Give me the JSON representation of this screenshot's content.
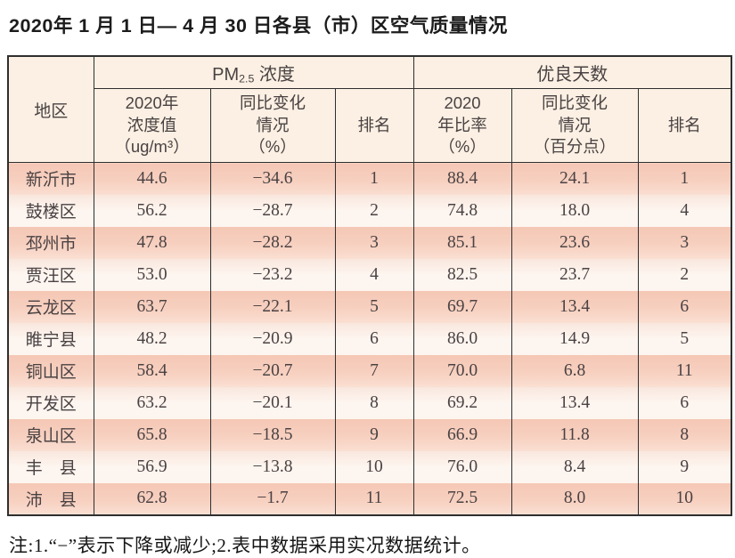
{
  "title": "2020年 1 月 1 日— 4 月 30 日各县（市）区空气质量情况",
  "table": {
    "header": {
      "region": "地区",
      "pm25": {
        "prefix": "PM",
        "sub": "2.5",
        "suffix": " 浓度"
      },
      "good_days": "优良天数",
      "pm25_cols": [
        "2020年\n浓度值\n（ug/m³）",
        "同比变化\n情况\n（%）",
        "排名"
      ],
      "good_cols": [
        "2020\n年比率\n（%）",
        "同比变化\n情况\n（百分点）",
        "排名"
      ]
    },
    "rows": [
      {
        "region": "新沂市",
        "pm_value": "44.6",
        "pm_change": "−34.6",
        "pm_rank": "1",
        "good_rate": "88.4",
        "good_change": "24.1",
        "good_rank": "1"
      },
      {
        "region": "鼓楼区",
        "pm_value": "56.2",
        "pm_change": "−28.7",
        "pm_rank": "2",
        "good_rate": "74.8",
        "good_change": "18.0",
        "good_rank": "4"
      },
      {
        "region": "邳州市",
        "pm_value": "47.8",
        "pm_change": "−28.2",
        "pm_rank": "3",
        "good_rate": "85.1",
        "good_change": "23.6",
        "good_rank": "3"
      },
      {
        "region": "贾汪区",
        "pm_value": "53.0",
        "pm_change": "−23.2",
        "pm_rank": "4",
        "good_rate": "82.5",
        "good_change": "23.7",
        "good_rank": "2"
      },
      {
        "region": "云龙区",
        "pm_value": "63.7",
        "pm_change": "−22.1",
        "pm_rank": "5",
        "good_rate": "69.7",
        "good_change": "13.4",
        "good_rank": "6"
      },
      {
        "region": "睢宁县",
        "pm_value": "48.2",
        "pm_change": "−20.9",
        "pm_rank": "6",
        "good_rate": "86.0",
        "good_change": "14.9",
        "good_rank": "5"
      },
      {
        "region": "铜山区",
        "pm_value": "58.4",
        "pm_change": "−20.7",
        "pm_rank": "7",
        "good_rate": "70.0",
        "good_change": "6.8",
        "good_rank": "11"
      },
      {
        "region": "开发区",
        "pm_value": "63.2",
        "pm_change": "−20.1",
        "pm_rank": "8",
        "good_rate": "69.2",
        "good_change": "13.4",
        "good_rank": "6"
      },
      {
        "region": "泉山区",
        "pm_value": "65.8",
        "pm_change": "−18.5",
        "pm_rank": "9",
        "good_rate": "66.9",
        "good_change": "11.8",
        "good_rank": "8"
      },
      {
        "region": "丰　县",
        "pm_value": "56.9",
        "pm_change": "−13.8",
        "pm_rank": "10",
        "good_rate": "76.0",
        "good_change": "8.4",
        "good_rank": "9"
      },
      {
        "region": "沛　县",
        "pm_value": "62.8",
        "pm_change": "−1.7",
        "pm_rank": "11",
        "good_rate": "72.5",
        "good_change": "8.0",
        "good_rank": "10"
      }
    ]
  },
  "footnote": "注:1.“−”表示下降或减少;2.表中数据采用实况数据统计。",
  "colors": {
    "border": "#2f2f2f",
    "header-bg": "#fbf0e3",
    "row-odd-top": "#f5c7b5",
    "row-odd-bottom": "#fadfd2",
    "row-even-top": "#f9e7dd",
    "row-even-bottom": "#fdf5ef",
    "cell-text": "#4a4243",
    "title-text": "#1c1c1c"
  }
}
